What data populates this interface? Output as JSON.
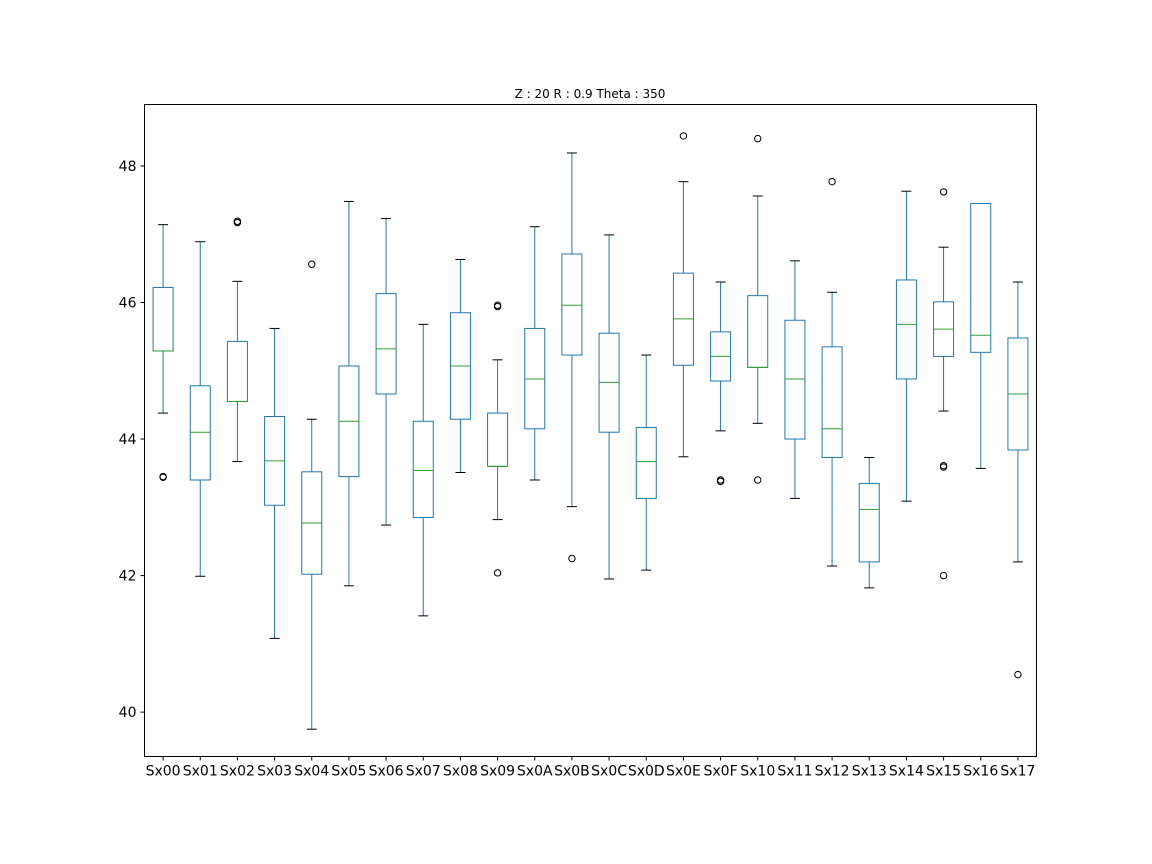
{
  "chart_data": {
    "type": "box",
    "title": "Z : 20 R : 0.9  Theta : 350",
    "xlabel": "",
    "ylabel": "",
    "ylim": [
      39.35,
      48.9
    ],
    "yticks": [
      40,
      42,
      44,
      46,
      48
    ],
    "ytick_labels": [
      "40",
      "42",
      "44",
      "46",
      "48"
    ],
    "colors": {
      "box": "#1f77b4",
      "median": "#2ca02c",
      "whisker": "#1f77b4",
      "cap": "#000000",
      "flier": "#000000"
    },
    "categories": [
      "Sx00",
      "Sx01",
      "Sx02",
      "Sx03",
      "Sx04",
      "Sx05",
      "Sx06",
      "Sx07",
      "Sx08",
      "Sx09",
      "Sx0A",
      "Sx0B",
      "Sx0C",
      "Sx0D",
      "Sx0E",
      "Sx0F",
      "Sx10",
      "Sx11",
      "Sx12",
      "Sx13",
      "Sx14",
      "Sx15",
      "Sx16",
      "Sx17"
    ],
    "boxes": [
      {
        "whislo": 44.38,
        "q1": 45.29,
        "med": 45.29,
        "q3": 46.22,
        "whishi": 47.14,
        "fliers": [
          43.45,
          43.44
        ]
      },
      {
        "whislo": 41.99,
        "q1": 43.4,
        "med": 44.1,
        "q3": 44.78,
        "whishi": 46.89,
        "fliers": []
      },
      {
        "whislo": 43.67,
        "q1": 44.55,
        "med": 44.55,
        "q3": 45.43,
        "whishi": 46.31,
        "fliers": [
          47.19,
          47.17
        ]
      },
      {
        "whislo": 41.08,
        "q1": 43.03,
        "med": 43.68,
        "q3": 44.33,
        "whishi": 45.62,
        "fliers": []
      },
      {
        "whislo": 39.75,
        "q1": 42.02,
        "med": 42.77,
        "q3": 43.52,
        "whishi": 44.29,
        "fliers": [
          46.56
        ]
      },
      {
        "whislo": 41.85,
        "q1": 43.45,
        "med": 44.26,
        "q3": 45.07,
        "whishi": 47.48,
        "fliers": []
      },
      {
        "whislo": 42.74,
        "q1": 44.66,
        "med": 45.32,
        "q3": 46.13,
        "whishi": 47.23,
        "fliers": []
      },
      {
        "whislo": 41.41,
        "q1": 42.85,
        "med": 43.54,
        "q3": 44.26,
        "whishi": 45.68,
        "fliers": []
      },
      {
        "whislo": 43.51,
        "q1": 44.29,
        "med": 45.07,
        "q3": 45.85,
        "whishi": 46.63,
        "fliers": []
      },
      {
        "whislo": 42.82,
        "q1": 43.6,
        "med": 43.6,
        "q3": 44.38,
        "whishi": 45.16,
        "fliers": [
          45.96,
          45.94,
          42.04
        ]
      },
      {
        "whislo": 43.4,
        "q1": 44.15,
        "med": 44.88,
        "q3": 45.62,
        "whishi": 47.11,
        "fliers": []
      },
      {
        "whislo": 43.01,
        "q1": 45.23,
        "med": 45.96,
        "q3": 46.71,
        "whishi": 48.19,
        "fliers": [
          42.25
        ]
      },
      {
        "whislo": 41.95,
        "q1": 44.1,
        "med": 44.83,
        "q3": 45.55,
        "whishi": 46.99,
        "fliers": []
      },
      {
        "whislo": 42.08,
        "q1": 43.13,
        "med": 43.67,
        "q3": 44.17,
        "whishi": 45.23,
        "fliers": []
      },
      {
        "whislo": 43.74,
        "q1": 45.08,
        "med": 45.76,
        "q3": 46.43,
        "whishi": 47.77,
        "fliers": [
          48.44
        ]
      },
      {
        "whislo": 44.12,
        "q1": 44.85,
        "med": 45.21,
        "q3": 45.57,
        "whishi": 46.3,
        "fliers": [
          43.4,
          43.38
        ]
      },
      {
        "whislo": 44.23,
        "q1": 45.05,
        "med": 45.05,
        "q3": 46.1,
        "whishi": 47.56,
        "fliers": [
          48.4,
          43.4
        ]
      },
      {
        "whislo": 43.13,
        "q1": 44.0,
        "med": 44.88,
        "q3": 45.74,
        "whishi": 46.61,
        "fliers": []
      },
      {
        "whislo": 42.14,
        "q1": 43.73,
        "med": 44.15,
        "q3": 45.35,
        "whishi": 46.15,
        "fliers": [
          47.77
        ]
      },
      {
        "whislo": 41.82,
        "q1": 42.2,
        "med": 42.97,
        "q3": 43.35,
        "whishi": 43.73,
        "fliers": []
      },
      {
        "whislo": 43.09,
        "q1": 44.88,
        "med": 45.68,
        "q3": 46.33,
        "whishi": 47.63,
        "fliers": []
      },
      {
        "whislo": 44.41,
        "q1": 45.21,
        "med": 45.61,
        "q3": 46.01,
        "whishi": 46.81,
        "fliers": [
          47.62,
          43.61,
          43.59,
          42.0
        ]
      },
      {
        "whislo": 43.57,
        "q1": 45.27,
        "med": 45.52,
        "q3": 47.45,
        "whishi": 47.45,
        "fliers": []
      },
      {
        "whislo": 42.2,
        "q1": 43.84,
        "med": 44.66,
        "q3": 45.48,
        "whishi": 46.3,
        "fliers": [
          40.55
        ]
      }
    ]
  }
}
